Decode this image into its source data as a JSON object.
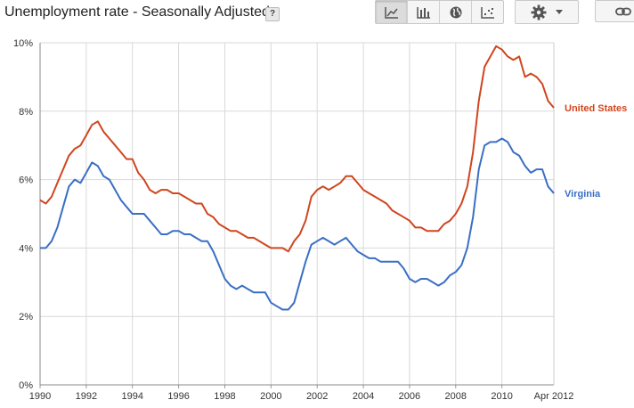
{
  "header": {
    "title": "Unemployment rate - Seasonally Adjusted",
    "help_label": "?"
  },
  "toolbar": {
    "buttons": [
      "line-chart-icon",
      "bar-chart-icon",
      "globe-icon",
      "scatter-icon"
    ],
    "active": "line-chart-icon"
  },
  "colors": {
    "united_states": "#d0461f",
    "virginia": "#3a6fc4",
    "grid": "#d9d9d9"
  },
  "chart_data": {
    "type": "line",
    "title": "Unemployment rate - Seasonally Adjusted",
    "xlabel": "",
    "ylabel": "",
    "xlim": [
      1990,
      2012.25
    ],
    "ylim": [
      0,
      10
    ],
    "grid": true,
    "legend": "right",
    "x_ticks": [
      1990,
      1992,
      1994,
      1996,
      1998,
      2000,
      2002,
      2004,
      2006,
      2008,
      2010
    ],
    "x_tick_labels": [
      "1990",
      "1992",
      "1994",
      "1996",
      "1998",
      "2000",
      "2002",
      "2004",
      "2006",
      "2008",
      "2010"
    ],
    "x_end_label": "Apr 2012",
    "y_ticks": [
      0,
      2,
      4,
      6,
      8,
      10
    ],
    "y_tick_labels": [
      "0%",
      "2%",
      "4%",
      "6%",
      "8%",
      "10%"
    ],
    "series": [
      {
        "name": "United States",
        "color": "#d0461f",
        "x": [
          1990,
          1990.25,
          1990.5,
          1990.75,
          1991,
          1991.25,
          1991.5,
          1991.75,
          1992,
          1992.25,
          1992.5,
          1992.75,
          1993,
          1993.25,
          1993.5,
          1993.75,
          1994,
          1994.25,
          1994.5,
          1994.75,
          1995,
          1995.25,
          1995.5,
          1995.75,
          1996,
          1996.25,
          1996.5,
          1996.75,
          1997,
          1997.25,
          1997.5,
          1997.75,
          1998,
          1998.25,
          1998.5,
          1998.75,
          1999,
          1999.25,
          1999.5,
          1999.75,
          2000,
          2000.25,
          2000.5,
          2000.75,
          2001,
          2001.25,
          2001.5,
          2001.75,
          2002,
          2002.25,
          2002.5,
          2002.75,
          2003,
          2003.25,
          2003.5,
          2003.75,
          2004,
          2004.25,
          2004.5,
          2004.75,
          2005,
          2005.25,
          2005.5,
          2005.75,
          2006,
          2006.25,
          2006.5,
          2006.75,
          2007,
          2007.25,
          2007.5,
          2007.75,
          2008,
          2008.25,
          2008.5,
          2008.75,
          2009,
          2009.25,
          2009.5,
          2009.75,
          2010,
          2010.25,
          2010.5,
          2010.75,
          2011,
          2011.25,
          2011.5,
          2011.75,
          2012,
          2012.25
        ],
        "values": [
          5.4,
          5.3,
          5.5,
          5.9,
          6.3,
          6.7,
          6.9,
          7.0,
          7.3,
          7.6,
          7.7,
          7.4,
          7.2,
          7.0,
          6.8,
          6.6,
          6.6,
          6.2,
          6.0,
          5.7,
          5.6,
          5.7,
          5.7,
          5.6,
          5.6,
          5.5,
          5.4,
          5.3,
          5.3,
          5.0,
          4.9,
          4.7,
          4.6,
          4.5,
          4.5,
          4.4,
          4.3,
          4.3,
          4.2,
          4.1,
          4.0,
          4.0,
          4.0,
          3.9,
          4.2,
          4.4,
          4.8,
          5.5,
          5.7,
          5.8,
          5.7,
          5.8,
          5.9,
          6.1,
          6.1,
          5.9,
          5.7,
          5.6,
          5.5,
          5.4,
          5.3,
          5.1,
          5.0,
          4.9,
          4.8,
          4.6,
          4.6,
          4.5,
          4.5,
          4.5,
          4.7,
          4.8,
          5.0,
          5.3,
          5.8,
          6.8,
          8.3,
          9.3,
          9.6,
          9.9,
          9.8,
          9.6,
          9.5,
          9.6,
          9.0,
          9.1,
          9.0,
          8.8,
          8.3,
          8.1
        ]
      },
      {
        "name": "Virginia",
        "color": "#3a6fc4",
        "x": [
          1990,
          1990.25,
          1990.5,
          1990.75,
          1991,
          1991.25,
          1991.5,
          1991.75,
          1992,
          1992.25,
          1992.5,
          1992.75,
          1993,
          1993.25,
          1993.5,
          1993.75,
          1994,
          1994.25,
          1994.5,
          1994.75,
          1995,
          1995.25,
          1995.5,
          1995.75,
          1996,
          1996.25,
          1996.5,
          1996.75,
          1997,
          1997.25,
          1997.5,
          1997.75,
          1998,
          1998.25,
          1998.5,
          1998.75,
          1999,
          1999.25,
          1999.5,
          1999.75,
          2000,
          2000.25,
          2000.5,
          2000.75,
          2001,
          2001.25,
          2001.5,
          2001.75,
          2002,
          2002.25,
          2002.5,
          2002.75,
          2003,
          2003.25,
          2003.5,
          2003.75,
          2004,
          2004.25,
          2004.5,
          2004.75,
          2005,
          2005.25,
          2005.5,
          2005.75,
          2006,
          2006.25,
          2006.5,
          2006.75,
          2007,
          2007.25,
          2007.5,
          2007.75,
          2008,
          2008.25,
          2008.5,
          2008.75,
          2009,
          2009.25,
          2009.5,
          2009.75,
          2010,
          2010.25,
          2010.5,
          2010.75,
          2011,
          2011.25,
          2011.5,
          2011.75,
          2012,
          2012.25
        ],
        "values": [
          4.0,
          4.0,
          4.2,
          4.6,
          5.2,
          5.8,
          6.0,
          5.9,
          6.2,
          6.5,
          6.4,
          6.1,
          6.0,
          5.7,
          5.4,
          5.2,
          5.0,
          5.0,
          5.0,
          4.8,
          4.6,
          4.4,
          4.4,
          4.5,
          4.5,
          4.4,
          4.4,
          4.3,
          4.2,
          4.2,
          3.9,
          3.5,
          3.1,
          2.9,
          2.8,
          2.9,
          2.8,
          2.7,
          2.7,
          2.7,
          2.4,
          2.3,
          2.2,
          2.2,
          2.4,
          3.0,
          3.6,
          4.1,
          4.2,
          4.3,
          4.2,
          4.1,
          4.2,
          4.3,
          4.1,
          3.9,
          3.8,
          3.7,
          3.7,
          3.6,
          3.6,
          3.6,
          3.6,
          3.4,
          3.1,
          3.0,
          3.1,
          3.1,
          3.0,
          2.9,
          3.0,
          3.2,
          3.3,
          3.5,
          4.0,
          4.9,
          6.3,
          7.0,
          7.1,
          7.1,
          7.2,
          7.1,
          6.8,
          6.7,
          6.4,
          6.2,
          6.3,
          6.3,
          5.8,
          5.6
        ]
      }
    ]
  }
}
